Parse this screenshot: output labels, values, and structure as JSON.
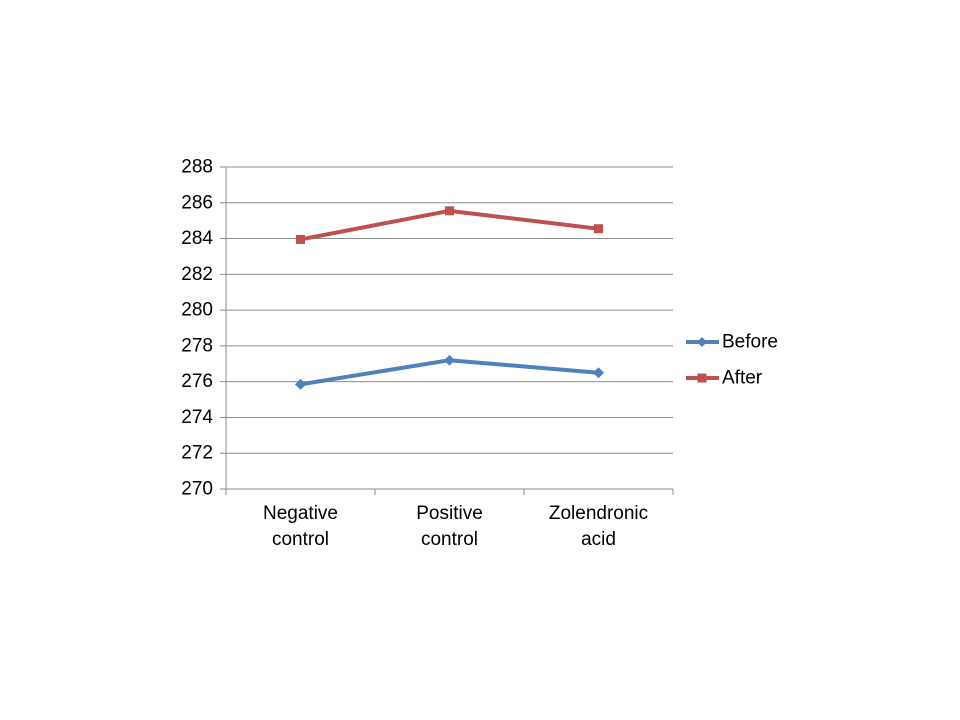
{
  "chart_data": {
    "type": "line",
    "title": "",
    "xlabel": "",
    "ylabel": "",
    "categories": [
      "Negative control",
      "Positive control",
      "Zolendronic acid"
    ],
    "series": [
      {
        "name": "Before",
        "values": [
          275.85,
          277.2,
          276.5
        ],
        "color": "#4F81BD",
        "marker": "diamond"
      },
      {
        "name": "After",
        "values": [
          283.95,
          285.55,
          284.55
        ],
        "color": "#C0504D",
        "marker": "square"
      }
    ],
    "ylim": [
      270,
      288
    ],
    "ytick_step": 2,
    "yticks": [
      270,
      272,
      274,
      276,
      278,
      280,
      282,
      284,
      286,
      288
    ],
    "grid": "horizontal",
    "legend_position": "right",
    "legend_labels": [
      "Before",
      "After"
    ],
    "colors": {
      "gridline": "#8C8C8C",
      "axis": "#8C8C8C",
      "text": "#000000",
      "background": "#FFFFFF"
    }
  }
}
